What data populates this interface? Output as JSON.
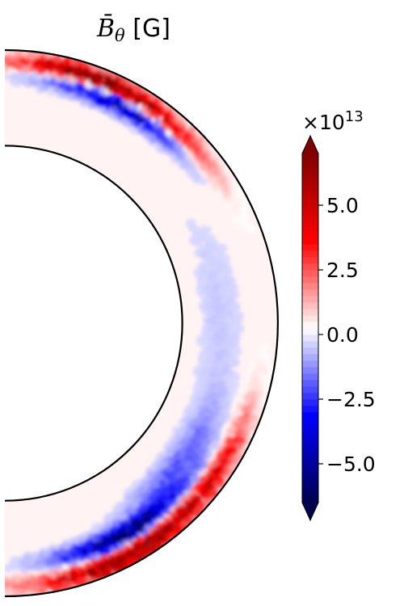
{
  "chart_data": {
    "type": "heatmap",
    "title": {
      "symbol": "B̄",
      "subscript": "θ",
      "unit": "[G]"
    },
    "colorbar": {
      "colormap": "seismic",
      "offset_text": "×10",
      "offset_exponent": "13",
      "range": [
        -6.5,
        7.0
      ],
      "extend": "both",
      "ticks": [
        {
          "value": 5.0,
          "label": "5.0"
        },
        {
          "value": 2.5,
          "label": "2.5"
        },
        {
          "value": 0.0,
          "label": "0.0"
        },
        {
          "value": -2.5,
          "label": "−2.5"
        },
        {
          "value": -5.0,
          "label": "−5.0"
        }
      ]
    },
    "domain": {
      "shape": "meridional half-annulus",
      "inner_radius_ratio": 0.65,
      "theta_range_deg": [
        0,
        180
      ]
    },
    "features": [
      {
        "region": "northern outer shell",
        "sign": "positive",
        "peak": 7.0
      },
      {
        "region": "northern mid shell",
        "sign": "negative",
        "peak": -5.5
      },
      {
        "region": "southern outer shell",
        "sign": "positive",
        "peak": 6.5
      },
      {
        "region": "southern mid shell",
        "sign": "negative",
        "peak": -6.0
      },
      {
        "region": "interior bulk",
        "sign": "near zero",
        "peak": 0.3
      }
    ]
  }
}
